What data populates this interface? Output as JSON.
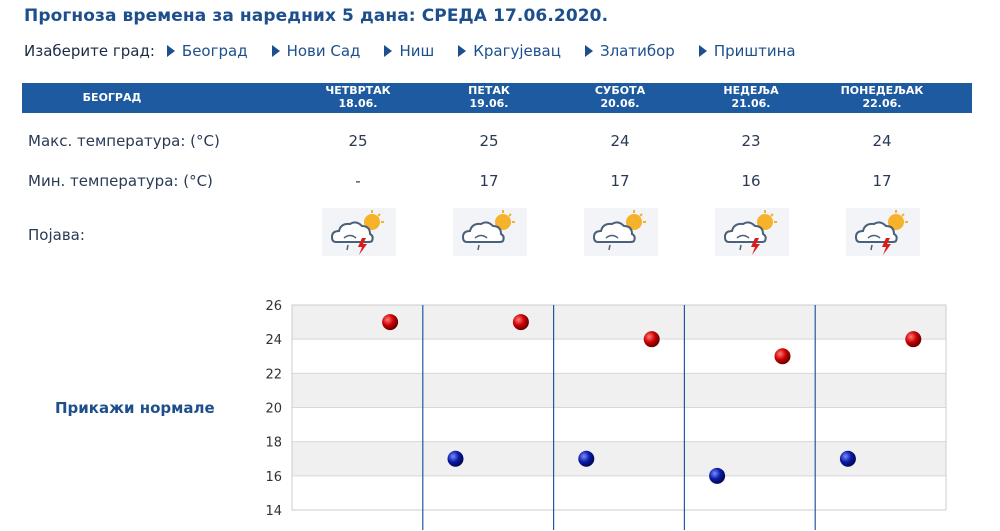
{
  "title": "Прогноза времена за наредних 5 дана: СРЕДА  17.06.2020.",
  "city_selector": {
    "label": "Изаберите град:",
    "cities": [
      "Београд",
      "Нови Сад",
      "Ниш",
      "Крагујевац",
      "Златибор",
      "Приштина"
    ]
  },
  "table": {
    "location": "БЕОГРАД",
    "days": [
      {
        "name": "ЧЕТВРТАК",
        "date": "18.06.",
        "max": "25",
        "min": "-"
      },
      {
        "name": "ПЕТАК",
        "date": "19.06.",
        "max": "25",
        "min": "17"
      },
      {
        "name": "СУБОТА",
        "date": "20.06.",
        "max": "24",
        "min": "17"
      },
      {
        "name": "НЕДЕЉА",
        "date": "21.06.",
        "max": "23",
        "min": "16"
      },
      {
        "name": "ПОНЕДЕЉАК",
        "date": "22.06.",
        "max": "24",
        "min": "17"
      }
    ],
    "max_label": "Макс. температура: (°C)",
    "min_label": "Мин. температура: (°C)",
    "phenomenon_label": "Појава:",
    "icons": [
      "thunderstorm-icon",
      "cloud-sun-icon",
      "cloud-sun-icon",
      "thunderstorm-icon",
      "thunderstorm-icon"
    ]
  },
  "show_normals_label": "Прикажи нормале",
  "colors": {
    "accent": "#1e5aa0",
    "max_point": "#cc0000",
    "min_point": "#0a1aa8"
  },
  "chart_data": {
    "type": "scatter",
    "ylim": [
      14,
      26
    ],
    "yticks": [
      "26",
      "24",
      "22",
      "20",
      "18",
      "16",
      "14"
    ],
    "grid": true,
    "series": [
      {
        "x": [
          1,
          2,
          3,
          4,
          5
        ],
        "values": [
          25,
          25,
          24,
          23,
          24
        ]
      },
      {
        "x": [
          2,
          3,
          4,
          5
        ],
        "values": [
          17,
          17,
          16,
          17
        ]
      }
    ]
  }
}
